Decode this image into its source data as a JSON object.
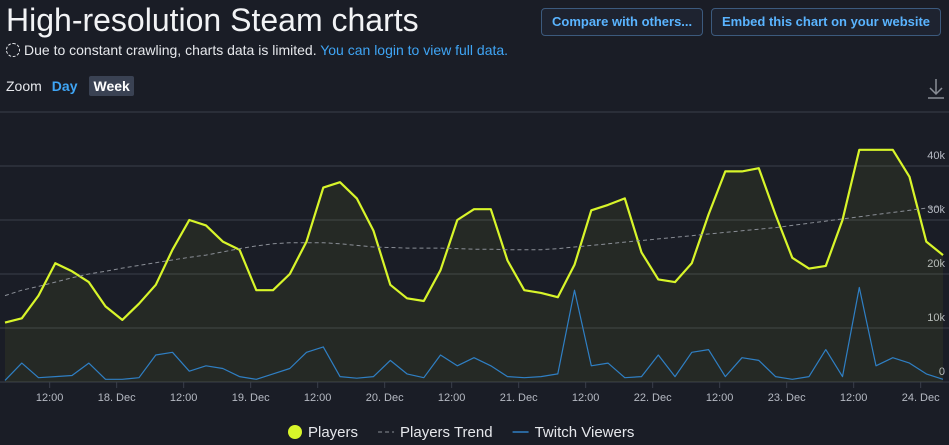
{
  "header": {
    "title": "High-resolution Steam charts",
    "buttons": [
      "Compare with others...",
      "Embed this chart on your website"
    ],
    "notice": "Due to constant crawling, charts data is limited.",
    "notice_link": "You can login to view full data.",
    "zoom_label": "Zoom",
    "zoom_options": [
      "Day",
      "Week"
    ]
  },
  "chart_data": {
    "type": "line",
    "x": [
      4,
      7,
      10,
      13,
      16,
      19,
      22,
      25,
      28,
      31,
      34,
      37,
      40,
      43,
      46,
      49,
      52,
      55,
      58,
      61,
      64,
      67,
      70,
      73,
      76,
      79,
      82,
      85,
      88,
      91,
      94,
      97,
      100,
      103,
      106,
      109,
      112,
      115,
      118,
      121,
      124,
      127,
      130,
      133,
      136,
      139,
      142,
      145,
      148,
      151,
      154,
      157,
      160,
      163,
      166,
      169,
      172
    ],
    "xlim": [
      4,
      172
    ],
    "xticks": [
      {
        "value": 12,
        "label": "12:00"
      },
      {
        "value": 24,
        "label": "18. Dec"
      },
      {
        "value": 36,
        "label": "12:00"
      },
      {
        "value": 48,
        "label": "19. Dec"
      },
      {
        "value": 60,
        "label": "12:00"
      },
      {
        "value": 72,
        "label": "20. Dec"
      },
      {
        "value": 84,
        "label": "12:00"
      },
      {
        "value": 96,
        "label": "21. Dec"
      },
      {
        "value": 108,
        "label": "12:00"
      },
      {
        "value": 120,
        "label": "22. Dec"
      },
      {
        "value": 132,
        "label": "12:00"
      },
      {
        "value": 144,
        "label": "23. Dec"
      },
      {
        "value": 156,
        "label": "12:00"
      },
      {
        "value": 168,
        "label": "24. Dec"
      }
    ],
    "ylim": [
      0,
      50000
    ],
    "yticks": [
      0,
      {
        "value": 10000,
        "label": "10k"
      },
      {
        "value": 20000,
        "label": "20k"
      },
      {
        "value": 30000,
        "label": "30k"
      },
      {
        "value": 40000,
        "label": "40k"
      }
    ],
    "grid": true,
    "series": [
      {
        "name": "Players",
        "color": "#d8f52a",
        "fill_area": true,
        "legend_symbol": "circle",
        "values": [
          11000,
          11800,
          16000,
          22000,
          20500,
          18500,
          14000,
          11500,
          14500,
          18000,
          24500,
          30000,
          29000,
          26000,
          24500,
          17000,
          17000,
          20000,
          26000,
          36000,
          37000,
          34000,
          28000,
          18000,
          15500,
          15000,
          20700,
          30000,
          32000,
          32000,
          22500,
          17000,
          16500,
          15700,
          21700,
          31800,
          32800,
          34000,
          24000,
          19000,
          18500,
          22000,
          31000,
          39000,
          39000,
          39600,
          31000,
          23000,
          21000,
          21500,
          30000,
          43000,
          43000,
          43000,
          38000,
          26000,
          23500
        ]
      },
      {
        "name": "Players Trend",
        "color": "#8a8e96",
        "dash": true,
        "legend_symbol": "dash",
        "values": [
          16000,
          17000,
          17700,
          18500,
          19300,
          20000,
          20500,
          21100,
          21600,
          22100,
          22600,
          23100,
          23500,
          24100,
          24700,
          25200,
          25600,
          25800,
          25800,
          25800,
          25600,
          25300,
          25000,
          24900,
          24800,
          24800,
          24800,
          24700,
          24600,
          24600,
          24500,
          24500,
          24500,
          24700,
          25000,
          25300,
          25600,
          25900,
          26200,
          26500,
          26800,
          27100,
          27400,
          27700,
          28000,
          28300,
          28600,
          29000,
          29400,
          29800,
          30200,
          30600,
          31000,
          31400,
          31800,
          32200,
          32500
        ]
      },
      {
        "name": "Twitch Viewers",
        "color": "#2f7fc4",
        "legend_symbol": "line",
        "values": [
          300,
          3500,
          800,
          1000,
          1200,
          3500,
          500,
          500,
          800,
          5000,
          5500,
          2000,
          3000,
          2500,
          1000,
          500,
          1500,
          2500,
          5500,
          6500,
          1000,
          700,
          1000,
          4000,
          1500,
          800,
          5000,
          3000,
          4500,
          3000,
          1000,
          800,
          1000,
          1500,
          17000,
          3000,
          3500,
          800,
          1000,
          5000,
          1000,
          5500,
          6000,
          1000,
          4500,
          4000,
          1000,
          500,
          1000,
          6000,
          1000,
          17500,
          3000,
          4500,
          3500,
          1500,
          500
        ]
      }
    ]
  }
}
